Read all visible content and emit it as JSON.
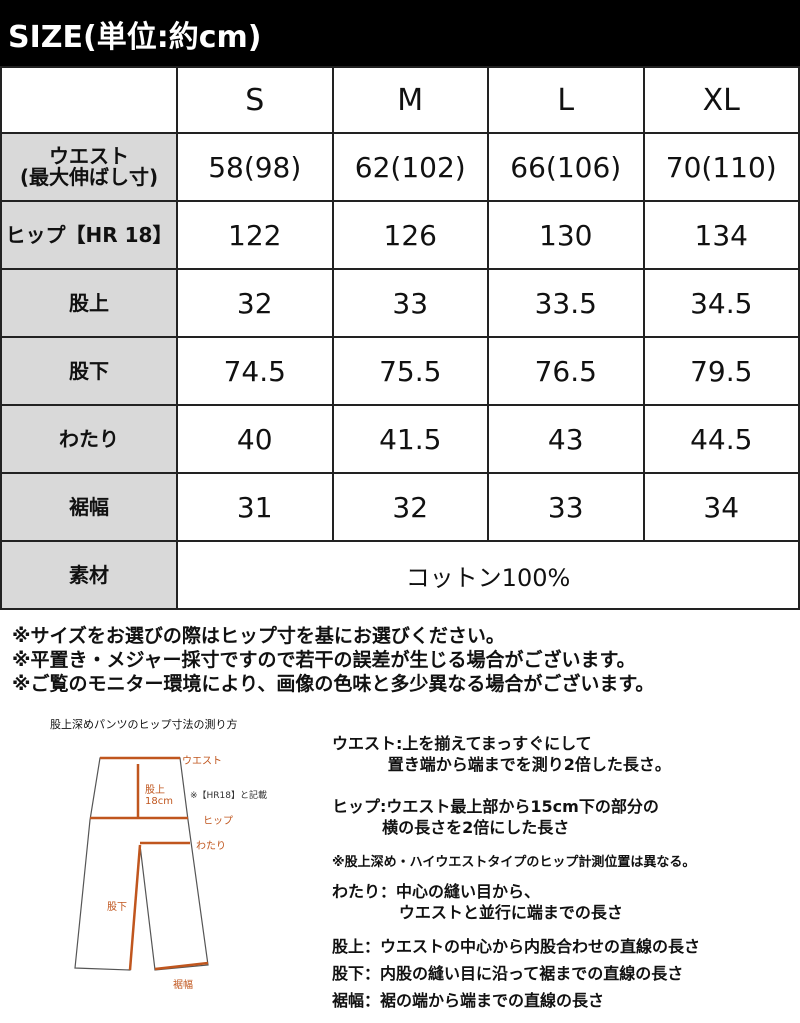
{
  "title": "SIZE(単位:約cm)",
  "table": {
    "sizes": [
      "S",
      "M",
      "L",
      "XL"
    ],
    "rows": [
      {
        "label": "ウエスト\n(最大伸ばし寸)",
        "values": [
          "58(98)",
          "62(102)",
          "66(106)",
          "70(110)"
        ]
      },
      {
        "label": "ヒップ【HR 18】",
        "values": [
          "122",
          "126",
          "130",
          "134"
        ]
      },
      {
        "label": "股上",
        "values": [
          "32",
          "33",
          "33.5",
          "34.5"
        ]
      },
      {
        "label": "股下",
        "values": [
          "74.5",
          "75.5",
          "76.5",
          "79.5"
        ]
      },
      {
        "label": "わたり",
        "values": [
          "40",
          "41.5",
          "43",
          "44.5"
        ]
      },
      {
        "label": "裾幅",
        "values": [
          "31",
          "32",
          "33",
          "34"
        ]
      }
    ],
    "material": {
      "label": "素材",
      "value": "コットン100%"
    }
  },
  "notes": [
    "※サイズをお選びの際はヒップ寸を基にお選びください。",
    "※平置き・メジャー採寸ですので若干の誤差が生じる場合がございます。",
    "※ご覧のモニター環境により、画像の色味と多少異なる場合がございます。"
  ],
  "diagram": {
    "title": "股上深めパンツのヒップ寸法の測り方",
    "labels": {
      "waist": "ウエスト",
      "rise": "股上\n18cm",
      "hr_note": "※【HR18】と記載",
      "hip": "ヒップ",
      "thigh": "わたり",
      "inseam": "股下",
      "hem": "裾幅"
    },
    "accent": "#c0561e"
  },
  "explanations": [
    "ウエスト:上を揃えてまっすぐにして\n          置き端から端までを測り2倍した長さ。",
    "ヒップ:ウエスト最上部から15cm下の部分の\n         横の長さを2倍にした長さ",
    "※股上深め・ハイウエストタイプのヒップ計測位置は異なる。",
    "わたり：中心の縫い目から、\n            ウエストと並行に端までの長さ",
    "股上：ウエストの中心から内股合わせの直線の長さ",
    "股下：内股の縫い目に沿って裾までの直線の長さ",
    "裾幅：裾の端から端までの直線の長さ"
  ]
}
